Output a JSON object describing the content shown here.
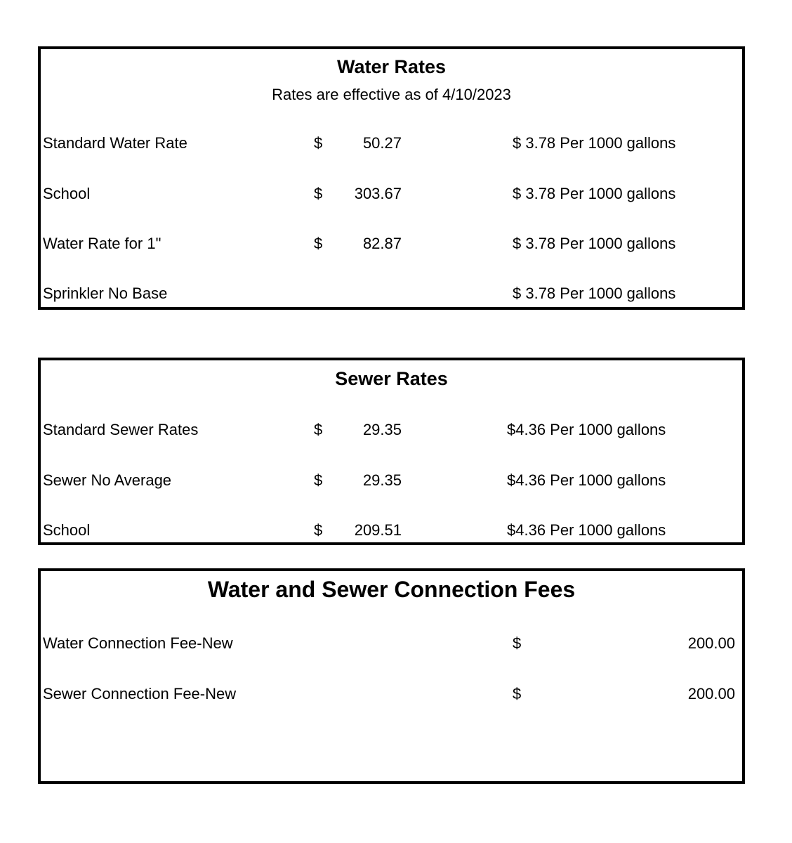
{
  "water": {
    "title": "Water Rates",
    "subtitle": "Rates are effective as of 4/10/2023",
    "rows": [
      {
        "label": "Standard Water Rate",
        "currency": "$",
        "base": "50.27",
        "usage": "$ 3.78 Per 1000 gallons"
      },
      {
        "label": "School",
        "currency": "$",
        "base": "303.67",
        "usage": "$ 3.78 Per 1000 gallons"
      },
      {
        "label": "Water Rate for 1\"",
        "currency": "$",
        "base": "82.87",
        "usage": "$ 3.78 Per 1000 gallons"
      },
      {
        "label": "Sprinkler No Base",
        "usage": "$ 3.78 Per 1000 gallons"
      }
    ]
  },
  "sewer": {
    "title": "Sewer Rates",
    "rows": [
      {
        "label": "Standard Sewer Rates",
        "currency": "$",
        "base": "29.35",
        "usage": "$4.36 Per 1000 gallons"
      },
      {
        "label": "Sewer No Average",
        "currency": "$",
        "base": "29.35",
        "usage": "$4.36 Per 1000 gallons"
      },
      {
        "label": "School",
        "currency": "$",
        "base": "209.51",
        "usage": "$4.36 Per 1000 gallons"
      }
    ]
  },
  "fees": {
    "title": "Water and Sewer Connection Fees",
    "rows": [
      {
        "label": "Water Connection Fee-New",
        "currency": "$",
        "amount": "200.00"
      },
      {
        "label": "Sewer Connection Fee-New",
        "currency": "$",
        "amount": "200.00"
      }
    ]
  }
}
